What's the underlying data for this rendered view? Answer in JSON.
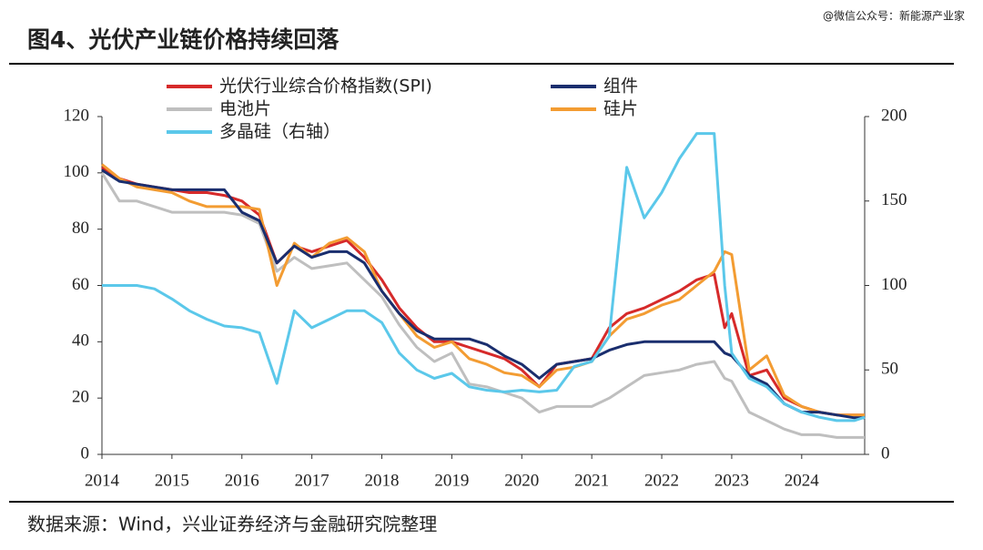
{
  "chart_data": {
    "type": "line",
    "title": "图4、光伏产业链价格持续回落",
    "watermark": "@微信公众号：新能源产业家",
    "source": "数据来源：Wind，兴业证券经济与金融研究院整理",
    "x": [
      2014,
      2014.25,
      2014.5,
      2014.75,
      2015,
      2015.25,
      2015.5,
      2015.75,
      2016,
      2016.25,
      2016.5,
      2016.75,
      2017,
      2017.25,
      2017.5,
      2017.75,
      2018,
      2018.25,
      2018.5,
      2018.75,
      2019,
      2019.25,
      2019.5,
      2019.75,
      2020,
      2020.25,
      2020.5,
      2020.75,
      2021,
      2021.25,
      2021.5,
      2021.75,
      2022,
      2022.25,
      2022.5,
      2022.75,
      2022.9,
      2023,
      2023.25,
      2023.5,
      2023.75,
      2024,
      2024.25,
      2024.5,
      2024.75,
      2024.9
    ],
    "series": [
      {
        "name": "光伏行业综合价格指数(SPI)",
        "color": "#d62a2a",
        "values": [
          102,
          98,
          96,
          95,
          94,
          93,
          93,
          92,
          90,
          85,
          68,
          74,
          72,
          74,
          76,
          70,
          62,
          52,
          45,
          40,
          40,
          38,
          36,
          34,
          30,
          24,
          32,
          33,
          34,
          45,
          50,
          52,
          55,
          58,
          62,
          64,
          45,
          50,
          28,
          30,
          20,
          17,
          15,
          14,
          14,
          14
        ]
      },
      {
        "name": "组件",
        "color": "#1a2e6e",
        "values": [
          101,
          97,
          96,
          95,
          94,
          94,
          94,
          94,
          86,
          83,
          68,
          74,
          70,
          72,
          72,
          68,
          58,
          50,
          44,
          41,
          41,
          41,
          39,
          35,
          32,
          27,
          32,
          33,
          34,
          37,
          39,
          40,
          40,
          40,
          40,
          40,
          36,
          35,
          28,
          25,
          18,
          15,
          15,
          14,
          13,
          13
        ]
      },
      {
        "name": "电池片",
        "color": "#bfbfbf",
        "values": [
          100,
          90,
          90,
          88,
          86,
          86,
          86,
          86,
          85,
          82,
          65,
          70,
          66,
          67,
          68,
          62,
          56,
          46,
          38,
          33,
          36,
          25,
          24,
          22,
          20,
          15,
          17,
          17,
          17,
          20,
          24,
          28,
          29,
          30,
          32,
          33,
          27,
          26,
          15,
          12,
          9,
          7,
          7,
          6,
          6,
          6
        ]
      },
      {
        "name": "硅片",
        "color": "#f39c32",
        "values": [
          103,
          98,
          95,
          94,
          93,
          90,
          88,
          88,
          88,
          87,
          60,
          75,
          70,
          75,
          77,
          72,
          58,
          50,
          42,
          38,
          40,
          34,
          32,
          29,
          28,
          24,
          30,
          31,
          33,
          42,
          48,
          50,
          53,
          55,
          60,
          65,
          72,
          71,
          30,
          35,
          21,
          17,
          15,
          14,
          14,
          14
        ]
      },
      {
        "name": "多晶硅（右轴）",
        "color": "#5bc8ea",
        "axis": "y2",
        "values": [
          100,
          100,
          100,
          98,
          92,
          85,
          80,
          76,
          75,
          72,
          42,
          85,
          75,
          80,
          85,
          85,
          78,
          60,
          50,
          45,
          48,
          40,
          38,
          37,
          38,
          37,
          38,
          52,
          55,
          70,
          170,
          140,
          155,
          175,
          190,
          190,
          100,
          60,
          45,
          40,
          30,
          25,
          22,
          20,
          20,
          22
        ]
      }
    ],
    "xlim": [
      2014,
      2024.9
    ],
    "xticks": [
      2014,
      2015,
      2016,
      2017,
      2018,
      2019,
      2020,
      2021,
      2022,
      2023,
      2024
    ],
    "ylim": [
      0,
      120
    ],
    "yticks": [
      0,
      20,
      40,
      60,
      80,
      100,
      120
    ],
    "y2lim": [
      0,
      200
    ],
    "y2ticks": [
      0,
      50,
      100,
      150,
      200
    ],
    "legend": "top"
  }
}
